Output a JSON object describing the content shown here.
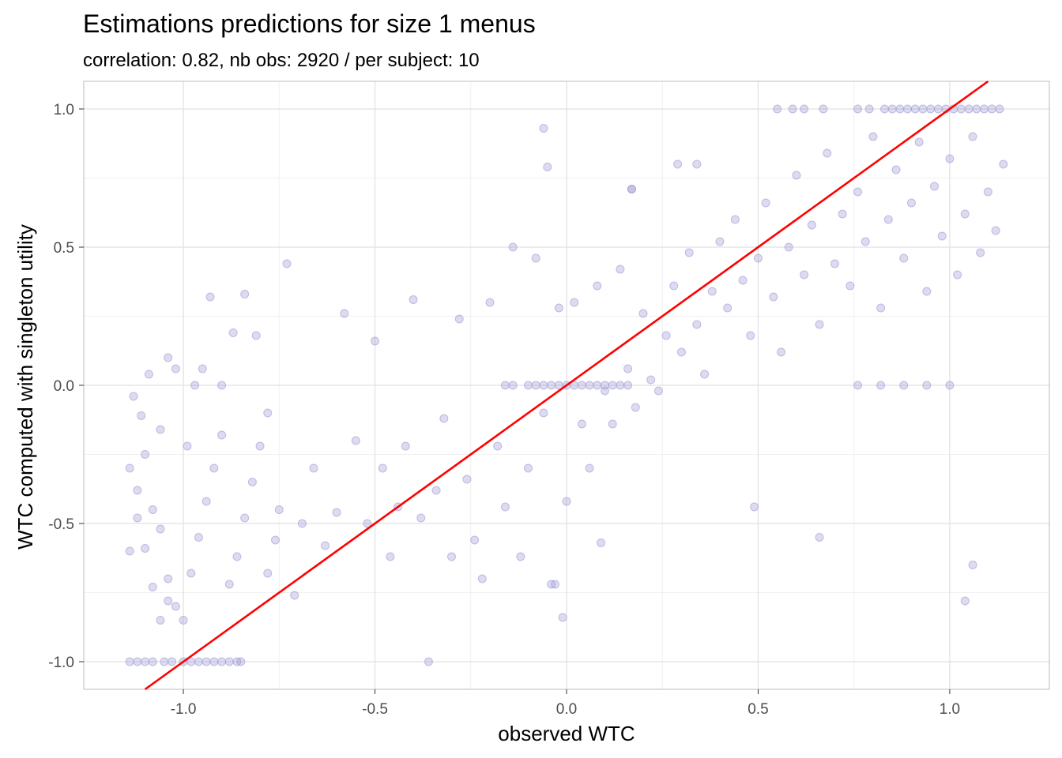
{
  "chart_data": {
    "type": "scatter",
    "title": "Estimations predictions for size 1 menus",
    "subtitle": "correlation: 0.82, nb obs: 2920 / per subject: 10",
    "xlabel": "observed WTC",
    "ylabel": "WTC computed with singleton utility",
    "xlim": [
      -1.26,
      1.26
    ],
    "ylim": [
      -1.1,
      1.1
    ],
    "x_ticks": [
      -1.0,
      -0.5,
      0.0,
      0.5,
      1.0
    ],
    "x_tick_labels": [
      "-1.0",
      "-0.5",
      "0.0",
      "0.5",
      "1.0"
    ],
    "y_ticks": [
      -1.0,
      -0.5,
      0.0,
      0.5,
      1.0
    ],
    "y_tick_labels": [
      "-1.0",
      "-0.5",
      "0.0",
      "0.5",
      "1.0"
    ],
    "grid": true,
    "point_color": "#9c99d4",
    "point_opacity": 0.35,
    "reference_line": {
      "slope": 1,
      "intercept": 0,
      "color": "#ff0000"
    },
    "series": [
      {
        "points": [
          [
            -1.14,
            -1.0
          ],
          [
            -1.12,
            -1.0
          ],
          [
            -1.1,
            -1.0
          ],
          [
            -1.08,
            -1.0
          ],
          [
            -1.05,
            -1.0
          ],
          [
            -1.03,
            -1.0
          ],
          [
            -1.0,
            -1.0
          ],
          [
            -0.98,
            -1.0
          ],
          [
            -0.96,
            -1.0
          ],
          [
            -0.94,
            -1.0
          ],
          [
            -0.92,
            -1.0
          ],
          [
            -0.9,
            -1.0
          ],
          [
            -0.88,
            -1.0
          ],
          [
            -0.86,
            -1.0
          ],
          [
            -0.85,
            -1.0
          ],
          [
            -1.14,
            -0.6
          ],
          [
            -1.12,
            -0.38
          ],
          [
            -1.1,
            -0.25
          ],
          [
            -1.08,
            -0.45
          ],
          [
            -1.06,
            -0.52
          ],
          [
            -1.04,
            -0.7
          ],
          [
            -1.02,
            -0.8
          ],
          [
            -1.0,
            -0.85
          ],
          [
            -0.98,
            -0.68
          ],
          [
            -0.96,
            -0.55
          ],
          [
            -0.94,
            -0.42
          ],
          [
            -0.92,
            -0.3
          ],
          [
            -0.9,
            -0.18
          ],
          [
            -0.88,
            -0.72
          ],
          [
            -0.86,
            -0.62
          ],
          [
            -0.84,
            -0.48
          ],
          [
            -0.82,
            -0.35
          ],
          [
            -0.8,
            -0.22
          ],
          [
            -0.78,
            -0.68
          ],
          [
            -0.76,
            -0.56
          ],
          [
            -1.13,
            -0.04
          ],
          [
            -1.11,
            -0.11
          ],
          [
            -1.09,
            0.04
          ],
          [
            -1.06,
            -0.16
          ],
          [
            -1.04,
            0.1
          ],
          [
            -1.02,
            0.06
          ],
          [
            -0.99,
            -0.22
          ],
          [
            -0.97,
            0.0
          ],
          [
            -0.95,
            0.06
          ],
          [
            -0.93,
            0.32
          ],
          [
            -0.9,
            0.0
          ],
          [
            -0.87,
            0.19
          ],
          [
            -0.84,
            0.33
          ],
          [
            -0.81,
            0.18
          ],
          [
            -0.78,
            -0.1
          ],
          [
            -0.75,
            -0.45
          ],
          [
            -0.73,
            0.44
          ],
          [
            -0.71,
            -0.76
          ],
          [
            -0.69,
            -0.5
          ],
          [
            -0.66,
            -0.3
          ],
          [
            -0.63,
            -0.58
          ],
          [
            -0.6,
            -0.46
          ],
          [
            -0.58,
            0.26
          ],
          [
            -0.55,
            -0.2
          ],
          [
            -0.52,
            -0.5
          ],
          [
            -0.5,
            0.16
          ],
          [
            -0.48,
            -0.3
          ],
          [
            -0.46,
            -0.62
          ],
          [
            -0.44,
            -0.44
          ],
          [
            -0.42,
            -0.22
          ],
          [
            -0.4,
            0.31
          ],
          [
            -0.38,
            -0.48
          ],
          [
            -0.36,
            -1.0
          ],
          [
            -0.34,
            -0.38
          ],
          [
            -0.32,
            -0.12
          ],
          [
            -0.3,
            -0.62
          ],
          [
            -0.28,
            0.24
          ],
          [
            -0.26,
            -0.34
          ],
          [
            -0.24,
            -0.56
          ],
          [
            -0.22,
            -0.7
          ],
          [
            -0.2,
            0.3
          ],
          [
            -0.18,
            -0.22
          ],
          [
            -0.16,
            -0.44
          ],
          [
            -0.14,
            0.5
          ],
          [
            -0.12,
            -0.62
          ],
          [
            -0.1,
            -0.3
          ],
          [
            -0.08,
            0.46
          ],
          [
            -0.06,
            -0.1
          ],
          [
            -0.04,
            -0.72
          ],
          [
            -0.02,
            0.28
          ],
          [
            0.0,
            -0.42
          ],
          [
            -0.01,
            -0.84
          ],
          [
            0.02,
            0.3
          ],
          [
            0.04,
            -0.14
          ],
          [
            0.06,
            -0.3
          ],
          [
            0.08,
            0.36
          ],
          [
            0.1,
            -0.02
          ],
          [
            0.12,
            -0.14
          ],
          [
            0.14,
            0.42
          ],
          [
            0.16,
            0.06
          ],
          [
            0.18,
            -0.08
          ],
          [
            0.2,
            0.26
          ],
          [
            0.22,
            0.02
          ],
          [
            0.24,
            -0.02
          ],
          [
            0.26,
            0.18
          ],
          [
            0.28,
            0.36
          ],
          [
            0.3,
            0.12
          ],
          [
            0.32,
            0.48
          ],
          [
            0.34,
            0.22
          ],
          [
            0.36,
            0.04
          ],
          [
            0.38,
            0.34
          ],
          [
            0.4,
            0.52
          ],
          [
            0.42,
            0.28
          ],
          [
            0.44,
            0.6
          ],
          [
            0.46,
            0.38
          ],
          [
            0.48,
            0.18
          ],
          [
            0.5,
            0.46
          ],
          [
            0.52,
            0.66
          ],
          [
            0.54,
            0.32
          ],
          [
            0.56,
            0.12
          ],
          [
            0.58,
            0.5
          ],
          [
            0.6,
            0.76
          ],
          [
            0.62,
            0.4
          ],
          [
            0.64,
            0.58
          ],
          [
            0.66,
            0.22
          ],
          [
            0.68,
            0.84
          ],
          [
            0.7,
            0.44
          ],
          [
            0.72,
            0.62
          ],
          [
            0.74,
            0.36
          ],
          [
            0.76,
            0.7
          ],
          [
            0.78,
            0.52
          ],
          [
            0.8,
            0.9
          ],
          [
            0.82,
            0.28
          ],
          [
            0.84,
            0.6
          ],
          [
            0.86,
            0.78
          ],
          [
            0.88,
            0.46
          ],
          [
            0.9,
            0.66
          ],
          [
            0.92,
            0.88
          ],
          [
            0.94,
            0.34
          ],
          [
            0.96,
            0.72
          ],
          [
            0.98,
            0.54
          ],
          [
            1.0,
            0.82
          ],
          [
            1.02,
            0.4
          ],
          [
            1.04,
            0.62
          ],
          [
            1.06,
            0.9
          ],
          [
            1.08,
            0.48
          ],
          [
            1.1,
            0.7
          ],
          [
            1.12,
            0.56
          ],
          [
            1.14,
            0.8
          ],
          [
            0.83,
            1.0
          ],
          [
            0.85,
            1.0
          ],
          [
            0.87,
            1.0
          ],
          [
            0.89,
            1.0
          ],
          [
            0.91,
            1.0
          ],
          [
            0.93,
            1.0
          ],
          [
            0.95,
            1.0
          ],
          [
            0.97,
            1.0
          ],
          [
            0.99,
            1.0
          ],
          [
            1.01,
            1.0
          ],
          [
            1.03,
            1.0
          ],
          [
            1.05,
            1.0
          ],
          [
            1.07,
            1.0
          ],
          [
            1.09,
            1.0
          ],
          [
            1.11,
            1.0
          ],
          [
            1.13,
            1.0
          ],
          [
            0.55,
            1.0
          ],
          [
            0.59,
            1.0
          ],
          [
            0.62,
            1.0
          ],
          [
            0.67,
            1.0
          ],
          [
            0.76,
            1.0
          ],
          [
            0.79,
            1.0
          ],
          [
            -0.1,
            0.0
          ],
          [
            -0.08,
            0.0
          ],
          [
            -0.06,
            0.0
          ],
          [
            -0.04,
            0.0
          ],
          [
            -0.02,
            0.0
          ],
          [
            0.0,
            0.0
          ],
          [
            0.02,
            0.0
          ],
          [
            0.04,
            0.0
          ],
          [
            0.06,
            0.0
          ],
          [
            0.08,
            0.0
          ],
          [
            0.1,
            0.0
          ],
          [
            0.12,
            0.0
          ],
          [
            0.14,
            0.0
          ],
          [
            0.16,
            0.0
          ],
          [
            -0.14,
            0.0
          ],
          [
            -0.16,
            0.0
          ],
          [
            0.76,
            0.0
          ],
          [
            0.82,
            0.0
          ],
          [
            0.88,
            0.0
          ],
          [
            0.94,
            0.0
          ],
          [
            1.0,
            0.0
          ],
          [
            -0.06,
            0.93
          ],
          [
            -0.05,
            0.79
          ],
          [
            0.17,
            0.71
          ],
          [
            0.29,
            0.8
          ],
          [
            0.34,
            0.8
          ],
          [
            0.17,
            0.71
          ],
          [
            -0.03,
            -0.72
          ],
          [
            0.09,
            -0.57
          ],
          [
            1.04,
            -0.78
          ],
          [
            1.06,
            -0.65
          ],
          [
            0.49,
            -0.44
          ],
          [
            0.66,
            -0.55
          ],
          [
            -1.14,
            -0.3
          ],
          [
            -1.12,
            -0.48
          ],
          [
            -1.1,
            -0.59
          ],
          [
            -1.08,
            -0.73
          ],
          [
            -1.06,
            -0.85
          ],
          [
            -1.04,
            -0.78
          ]
        ]
      }
    ]
  }
}
